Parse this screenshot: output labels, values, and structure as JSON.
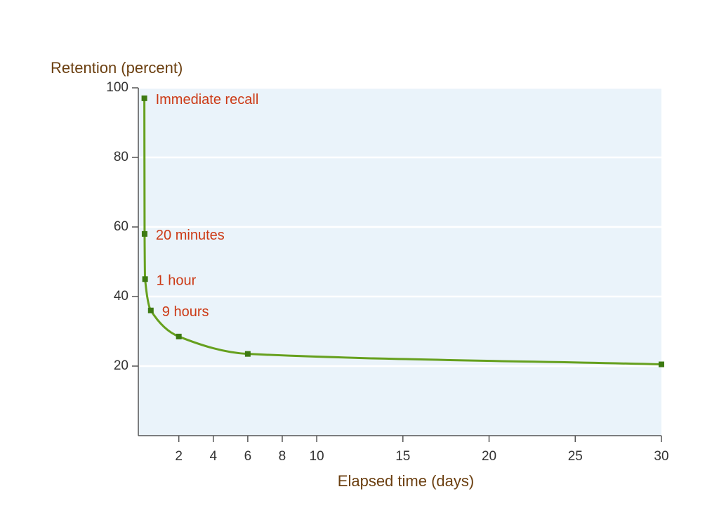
{
  "chart_data": {
    "type": "line",
    "y_label": "Retention (percent)",
    "x_label": "Elapsed time (days)",
    "x": [
      0,
      0.014,
      0.042,
      0.375,
      2,
      6,
      30
    ],
    "series": [
      {
        "color": "#66a01e",
        "marker_color": "#3d7a12",
        "values": [
          97,
          58,
          45,
          36,
          28.5,
          23.5,
          20.5
        ],
        "point_labels": [
          "Immediate recall",
          "20 minutes",
          "1 hour",
          "9 hours",
          null,
          null,
          null
        ]
      }
    ],
    "xlim": [
      -0.35,
      30
    ],
    "xticks": [
      2,
      4,
      6,
      8,
      10,
      15,
      20,
      25,
      30
    ],
    "ylim": [
      0,
      100
    ],
    "yticks": [
      20,
      40,
      60,
      80,
      100
    ],
    "grid": true
  }
}
